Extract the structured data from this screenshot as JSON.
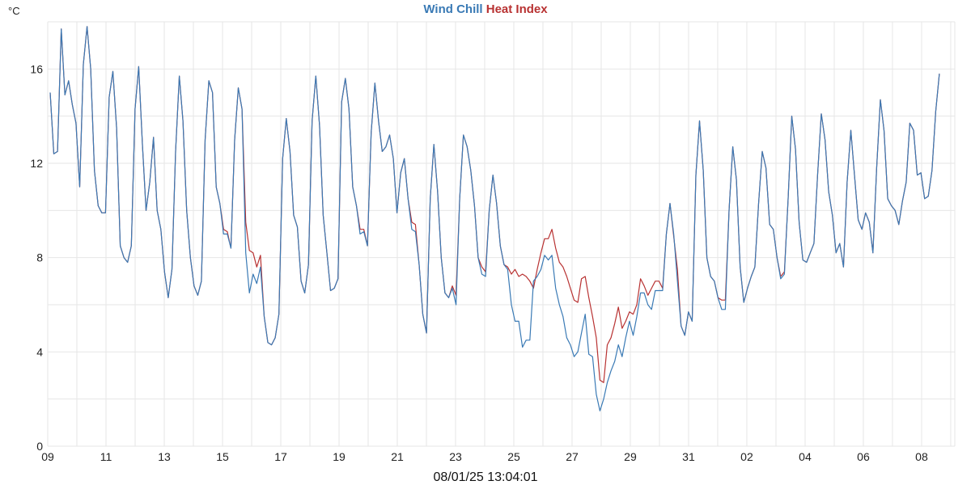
{
  "chart_data": {
    "type": "line",
    "title_parts": [
      "Wind Chill",
      "Heat Index"
    ],
    "ylabel": "°C",
    "xlabel": "",
    "timestamp": "08/01/25 13:04:01",
    "ylim": [
      0,
      18
    ],
    "xlim_days": [
      0,
      31.14
    ],
    "x_range_days": [
      0.083,
      30.61
    ],
    "grid": true,
    "legend": "top-center",
    "y_ticks": [
      0,
      4,
      8,
      12,
      16
    ],
    "x_tick_labels": [
      "09",
      "11",
      "13",
      "15",
      "17",
      "19",
      "21",
      "23",
      "25",
      "27",
      "29",
      "31",
      "02",
      "04",
      "06",
      "08"
    ],
    "colors": {
      "wind_chill": "#3a7ab5",
      "heat_index": "#b83232"
    },
    "series": [
      {
        "name": "Heat Index",
        "values": [
          15.0,
          12.4,
          12.5,
          17.7,
          14.9,
          15.5,
          14.5,
          13.7,
          11.0,
          16.2,
          17.8,
          16.0,
          11.7,
          10.2,
          9.9,
          9.9,
          14.8,
          15.9,
          13.5,
          8.5,
          8.0,
          7.8,
          8.5,
          14.3,
          16.1,
          12.8,
          10.0,
          11.2,
          13.1,
          10.0,
          9.2,
          7.4,
          6.3,
          7.5,
          12.5,
          15.7,
          13.8,
          10.0,
          8.0,
          6.8,
          6.4,
          7.0,
          13.0,
          15.5,
          15.0,
          11.0,
          10.3,
          9.2,
          9.1,
          8.4,
          13.0,
          15.2,
          14.3,
          9.5,
          8.3,
          8.2,
          7.6,
          8.1,
          5.5,
          4.4,
          4.3,
          4.6,
          5.6,
          12.2,
          13.9,
          12.5,
          9.8,
          9.3,
          7.0,
          6.5,
          7.7,
          13.8,
          15.7,
          13.6,
          9.8,
          8.2,
          6.6,
          6.7,
          7.1,
          14.6,
          15.6,
          14.3,
          11.0,
          10.2,
          9.2,
          9.2,
          8.5,
          13.3,
          15.4,
          13.8,
          12.5,
          12.7,
          13.2,
          12.2,
          9.9,
          11.6,
          12.2,
          10.5,
          9.5,
          9.4,
          7.7,
          5.6,
          4.8,
          10.5,
          12.8,
          10.8,
          8.0,
          6.5,
          6.3,
          6.8,
          6.4,
          10.5,
          13.2,
          12.7,
          11.7,
          10.2,
          8.0,
          7.6,
          7.4,
          10.0,
          11.5,
          10.3,
          8.5,
          7.7,
          7.6,
          7.3,
          7.5,
          7.2,
          7.3,
          7.2,
          7.0,
          6.7,
          7.5,
          8.2,
          8.8,
          8.8,
          9.2,
          8.4,
          7.8,
          7.6,
          7.2,
          6.7,
          6.2,
          6.1,
          7.1,
          7.2,
          6.3,
          5.5,
          4.6,
          2.8,
          2.7,
          4.3,
          4.6,
          5.2,
          5.9,
          5.0,
          5.3,
          5.7,
          5.6,
          6.0,
          7.1,
          6.8,
          6.4,
          6.7,
          7.0,
          7.0,
          6.7,
          9.0,
          10.3,
          8.9,
          7.5,
          5.1,
          4.7,
          5.7,
          5.3,
          11.5,
          13.8,
          11.7,
          8.0,
          7.2,
          7.0,
          6.3,
          6.2,
          6.2,
          10.0,
          12.7,
          11.3,
          7.6,
          6.1,
          6.7,
          7.2,
          7.6,
          10.3,
          12.5,
          11.8,
          9.4,
          9.2,
          8.0,
          7.2,
          7.4,
          10.5,
          14.0,
          12.6,
          9.5,
          7.9,
          7.8,
          8.2,
          8.6,
          11.5,
          14.1,
          13.0,
          10.8,
          9.8,
          8.2,
          8.6,
          7.6,
          11.2,
          13.4,
          11.5,
          9.6,
          9.2,
          9.9,
          9.5,
          8.2,
          11.8,
          14.7,
          13.4,
          10.5,
          10.2,
          10.0,
          9.4,
          10.4,
          11.2,
          13.7,
          13.4,
          11.5,
          11.6,
          10.5,
          10.6,
          11.7,
          14.2,
          15.8
        ]
      },
      {
        "name": "Wind Chill",
        "values": [
          15.0,
          12.4,
          12.5,
          17.7,
          14.9,
          15.5,
          14.5,
          13.7,
          11.0,
          16.2,
          17.8,
          16.0,
          11.7,
          10.2,
          9.9,
          9.9,
          14.8,
          15.9,
          13.5,
          8.5,
          8.0,
          7.8,
          8.5,
          14.3,
          16.1,
          12.8,
          10.0,
          11.2,
          13.1,
          10.0,
          9.2,
          7.4,
          6.3,
          7.5,
          12.5,
          15.7,
          13.8,
          10.0,
          8.0,
          6.8,
          6.4,
          7.0,
          13.0,
          15.5,
          15.0,
          11.0,
          10.3,
          9.0,
          9.0,
          8.4,
          13.0,
          15.2,
          14.3,
          8.2,
          6.5,
          7.3,
          6.9,
          7.6,
          5.5,
          4.4,
          4.3,
          4.6,
          5.6,
          12.2,
          13.9,
          12.5,
          9.8,
          9.3,
          7.0,
          6.5,
          7.7,
          13.8,
          15.7,
          13.6,
          9.8,
          8.2,
          6.6,
          6.7,
          7.1,
          14.6,
          15.6,
          14.3,
          11.0,
          10.2,
          9.0,
          9.1,
          8.5,
          13.3,
          15.4,
          13.8,
          12.5,
          12.7,
          13.2,
          12.2,
          9.9,
          11.6,
          12.2,
          10.5,
          9.2,
          9.1,
          7.7,
          5.6,
          4.8,
          10.5,
          12.8,
          10.8,
          8.0,
          6.5,
          6.3,
          6.7,
          6.0,
          10.5,
          13.2,
          12.7,
          11.7,
          10.2,
          8.0,
          7.3,
          7.2,
          10.0,
          11.5,
          10.3,
          8.5,
          7.7,
          7.5,
          6.0,
          5.3,
          5.3,
          4.2,
          4.5,
          4.5,
          7.0,
          7.2,
          7.5,
          8.1,
          7.9,
          8.1,
          6.7,
          6.0,
          5.5,
          4.6,
          4.3,
          3.8,
          4.0,
          4.8,
          5.6,
          3.9,
          3.8,
          2.2,
          1.5,
          2.0,
          2.7,
          3.2,
          3.6,
          4.3,
          3.8,
          4.6,
          5.3,
          4.7,
          5.5,
          6.5,
          6.5,
          6.0,
          5.8,
          6.6,
          6.6,
          6.6,
          9.0,
          10.3,
          9.0,
          7.0,
          5.1,
          4.7,
          5.7,
          5.3,
          11.5,
          13.8,
          11.7,
          8.0,
          7.2,
          7.0,
          6.3,
          5.8,
          5.8,
          10.0,
          12.7,
          11.3,
          7.6,
          6.1,
          6.7,
          7.2,
          7.6,
          10.3,
          12.5,
          11.8,
          9.4,
          9.2,
          8.0,
          7.1,
          7.3,
          10.5,
          14.0,
          12.6,
          9.5,
          7.9,
          7.8,
          8.2,
          8.6,
          11.5,
          14.1,
          13.0,
          10.8,
          9.8,
          8.2,
          8.6,
          7.6,
          11.2,
          13.4,
          11.5,
          9.6,
          9.2,
          9.9,
          9.5,
          8.2,
          11.8,
          14.7,
          13.4,
          10.5,
          10.2,
          10.0,
          9.4,
          10.4,
          11.2,
          13.7,
          13.4,
          11.5,
          11.6,
          10.5,
          10.6,
          11.7,
          14.2,
          15.8
        ]
      }
    ]
  }
}
